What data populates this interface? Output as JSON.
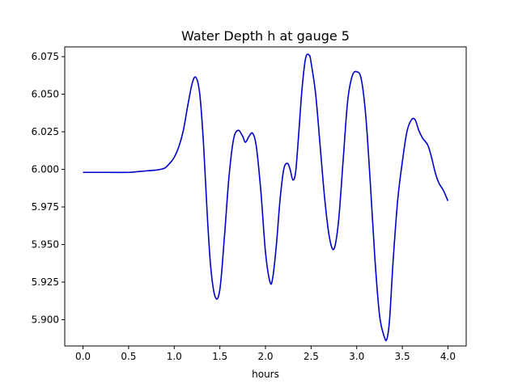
{
  "chart_data": {
    "type": "line",
    "title": "Water Depth h at gauge 5",
    "xlabel": "hours",
    "ylabel": "",
    "xlim": [
      -0.2,
      4.2
    ],
    "ylim": [
      5.8825,
      6.0815
    ],
    "xticks": [
      0.0,
      0.5,
      1.0,
      1.5,
      2.0,
      2.5,
      3.0,
      3.5,
      4.0
    ],
    "xtick_labels": [
      "0.0",
      "0.5",
      "1.0",
      "1.5",
      "2.0",
      "2.5",
      "3.0",
      "3.5",
      "4.0"
    ],
    "yticks": [
      5.9,
      5.925,
      5.95,
      5.975,
      6.0,
      6.025,
      6.05,
      6.075
    ],
    "ytick_labels": [
      "5.900",
      "5.925",
      "5.950",
      "5.975",
      "6.000",
      "6.025",
      "6.050",
      "6.075"
    ],
    "grid": false,
    "series": [
      {
        "color": "#0000cc",
        "x": [
          0.0,
          0.25,
          0.5,
          0.6,
          0.7,
          0.8,
          0.85,
          0.9,
          0.95,
          1.0,
          1.05,
          1.1,
          1.15,
          1.2,
          1.24,
          1.28,
          1.32,
          1.36,
          1.4,
          1.45,
          1.5,
          1.55,
          1.6,
          1.65,
          1.7,
          1.75,
          1.78,
          1.82,
          1.86,
          1.9,
          1.95,
          2.0,
          2.05,
          2.08,
          2.12,
          2.16,
          2.2,
          2.24,
          2.27,
          2.3,
          2.33,
          2.36,
          2.4,
          2.44,
          2.48,
          2.5,
          2.55,
          2.6,
          2.65,
          2.7,
          2.75,
          2.8,
          2.85,
          2.9,
          2.95,
          3.0,
          3.05,
          3.1,
          3.15,
          3.2,
          3.25,
          3.3,
          3.33,
          3.36,
          3.4,
          3.45,
          3.5,
          3.55,
          3.6,
          3.64,
          3.68,
          3.72,
          3.78,
          3.82,
          3.86,
          3.9,
          3.95,
          4.0
        ],
        "y": [
          5.998,
          5.998,
          5.998,
          5.9985,
          5.999,
          5.9995,
          6.0,
          6.001,
          6.004,
          6.008,
          6.015,
          6.026,
          6.043,
          6.058,
          6.061,
          6.05,
          6.018,
          5.972,
          5.935,
          5.915,
          5.92,
          5.955,
          5.995,
          6.02,
          6.026,
          6.022,
          6.018,
          6.022,
          6.024,
          6.015,
          5.985,
          5.945,
          5.925,
          5.928,
          5.95,
          5.98,
          6.0,
          6.004,
          6.0,
          5.993,
          5.998,
          6.02,
          6.053,
          6.074,
          6.076,
          6.071,
          6.05,
          6.015,
          5.98,
          5.955,
          5.947,
          5.965,
          6.005,
          6.045,
          6.062,
          6.065,
          6.06,
          6.035,
          5.99,
          5.94,
          5.903,
          5.889,
          5.887,
          5.9,
          5.94,
          5.98,
          6.005,
          6.025,
          6.033,
          6.033,
          6.026,
          6.021,
          6.016,
          6.008,
          5.998,
          5.991,
          5.986,
          5.979
        ]
      }
    ]
  }
}
